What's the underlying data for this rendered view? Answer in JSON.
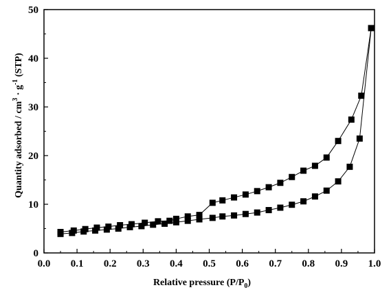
{
  "chart_data": {
    "type": "line",
    "xlabel": "Relative pressure (P/P0)",
    "xlabel_parts": {
      "main": "Relative pressure (P/P",
      "sub": "0",
      "end": ")"
    },
    "ylabel": "Quantity adsorbed / cm3 · g-1 (STP)",
    "ylabel_parts": {
      "a": "Quantity adsorbed / cm",
      "sup1": "3",
      "b": " · g",
      "sup2": "-1",
      "c": " (STP)"
    },
    "xlim": [
      0.0,
      1.0
    ],
    "ylim": [
      0,
      50
    ],
    "xticks": [
      "0.0",
      "0.1",
      "0.2",
      "0.3",
      "0.4",
      "0.5",
      "0.6",
      "0.7",
      "0.8",
      "0.9",
      "1.0"
    ],
    "yticks": [
      "0",
      "10",
      "20",
      "30",
      "40",
      "50"
    ],
    "grid": false,
    "legend": "none",
    "marker": "square",
    "color": "#000000",
    "series": [
      {
        "x": [
          0.05,
          0.085,
          0.12,
          0.155,
          0.19,
          0.225,
          0.26,
          0.295,
          0.33,
          0.365,
          0.4,
          0.435,
          0.47,
          0.51,
          0.54,
          0.575,
          0.61,
          0.645,
          0.68,
          0.715,
          0.75,
          0.785,
          0.82,
          0.855,
          0.89,
          0.925,
          0.955,
          0.99
        ],
        "y": [
          3.9,
          4.1,
          4.4,
          4.6,
          4.8,
          5.0,
          5.3,
          5.5,
          5.8,
          6.0,
          6.3,
          6.6,
          6.9,
          7.2,
          7.5,
          7.7,
          8.0,
          8.3,
          8.8,
          9.3,
          9.9,
          10.6,
          11.6,
          12.8,
          14.7,
          17.7,
          23.5,
          46.2
        ]
      },
      {
        "x": [
          0.99,
          0.96,
          0.93,
          0.89,
          0.855,
          0.82,
          0.785,
          0.75,
          0.715,
          0.68,
          0.645,
          0.61,
          0.575,
          0.54,
          0.51,
          0.47,
          0.435,
          0.4,
          0.38,
          0.345,
          0.305,
          0.265,
          0.23,
          0.195,
          0.16,
          0.125,
          0.09,
          0.05
        ],
        "y": [
          46.2,
          32.3,
          27.4,
          23.0,
          19.6,
          17.9,
          16.9,
          15.6,
          14.4,
          13.5,
          12.7,
          12.0,
          11.4,
          10.8,
          10.3,
          7.8,
          7.5,
          7.0,
          6.6,
          6.5,
          6.2,
          5.9,
          5.7,
          5.4,
          5.2,
          4.9,
          4.6,
          4.3
        ]
      }
    ]
  }
}
